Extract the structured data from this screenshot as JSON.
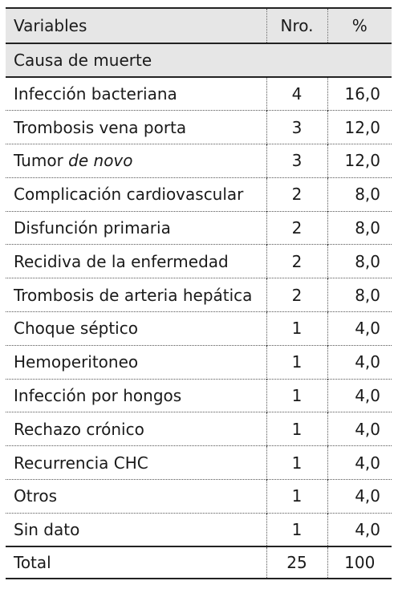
{
  "header": {
    "variables": "Variables",
    "nro": "Nro.",
    "pct": "%"
  },
  "section": "Causa de muerte",
  "rows": [
    {
      "label": "Infección bacteriana",
      "italic": "",
      "nro": "4",
      "pct": "16,0"
    },
    {
      "label": "Trombosis vena porta",
      "italic": "",
      "nro": "3",
      "pct": "12,0"
    },
    {
      "label": "Tumor ",
      "italic": "de novo",
      "nro": "3",
      "pct": "12,0"
    },
    {
      "label": "Complicación cardiovascular",
      "italic": "",
      "nro": "2",
      "pct": "8,0"
    },
    {
      "label": "Disfunción primaria",
      "italic": "",
      "nro": "2",
      "pct": "8,0"
    },
    {
      "label": "Recidiva de la enfermedad",
      "italic": "",
      "nro": "2",
      "pct": "8,0"
    },
    {
      "label": "Trombosis de arteria hepática",
      "italic": "",
      "nro": "2",
      "pct": "8,0"
    },
    {
      "label": "Choque séptico",
      "italic": "",
      "nro": "1",
      "pct": "4,0"
    },
    {
      "label": "Hemoperitoneo",
      "italic": "",
      "nro": "1",
      "pct": "4,0"
    },
    {
      "label": "Infección por hongos",
      "italic": "",
      "nro": "1",
      "pct": "4,0"
    },
    {
      "label": "Rechazo crónico",
      "italic": "",
      "nro": "1",
      "pct": "4,0"
    },
    {
      "label": "Recurrencia CHC",
      "italic": "",
      "nro": "1",
      "pct": "4,0"
    },
    {
      "label": "Otros",
      "italic": "",
      "nro": "1",
      "pct": "4,0"
    },
    {
      "label": "Sin dato",
      "italic": "",
      "nro": "1",
      "pct": "4,0"
    }
  ],
  "total": {
    "label": "Total",
    "nro": "25",
    "pct": "100"
  }
}
